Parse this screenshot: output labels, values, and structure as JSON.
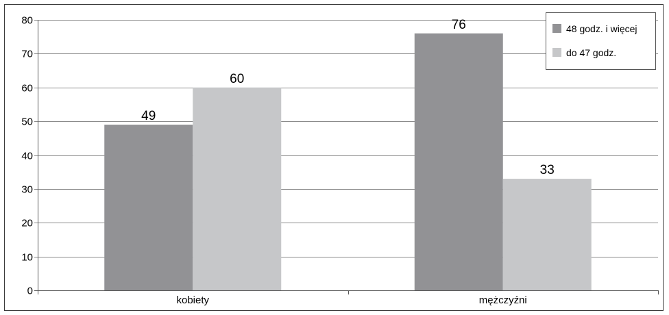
{
  "chart_data": {
    "type": "bar",
    "categories": [
      "kobiety",
      "mężczyźni"
    ],
    "series": [
      {
        "name": "48 godz. i więcej",
        "values": [
          49,
          76
        ],
        "color": "#929295"
      },
      {
        "name": "do 47 godz.",
        "values": [
          60,
          33
        ],
        "color": "#c6c7c9"
      }
    ],
    "ylim": [
      0,
      80
    ],
    "yticks": [
      0,
      10,
      20,
      30,
      40,
      50,
      60,
      70,
      80
    ],
    "grid": true,
    "legend_position": "top-right",
    "data_labels": true
  }
}
